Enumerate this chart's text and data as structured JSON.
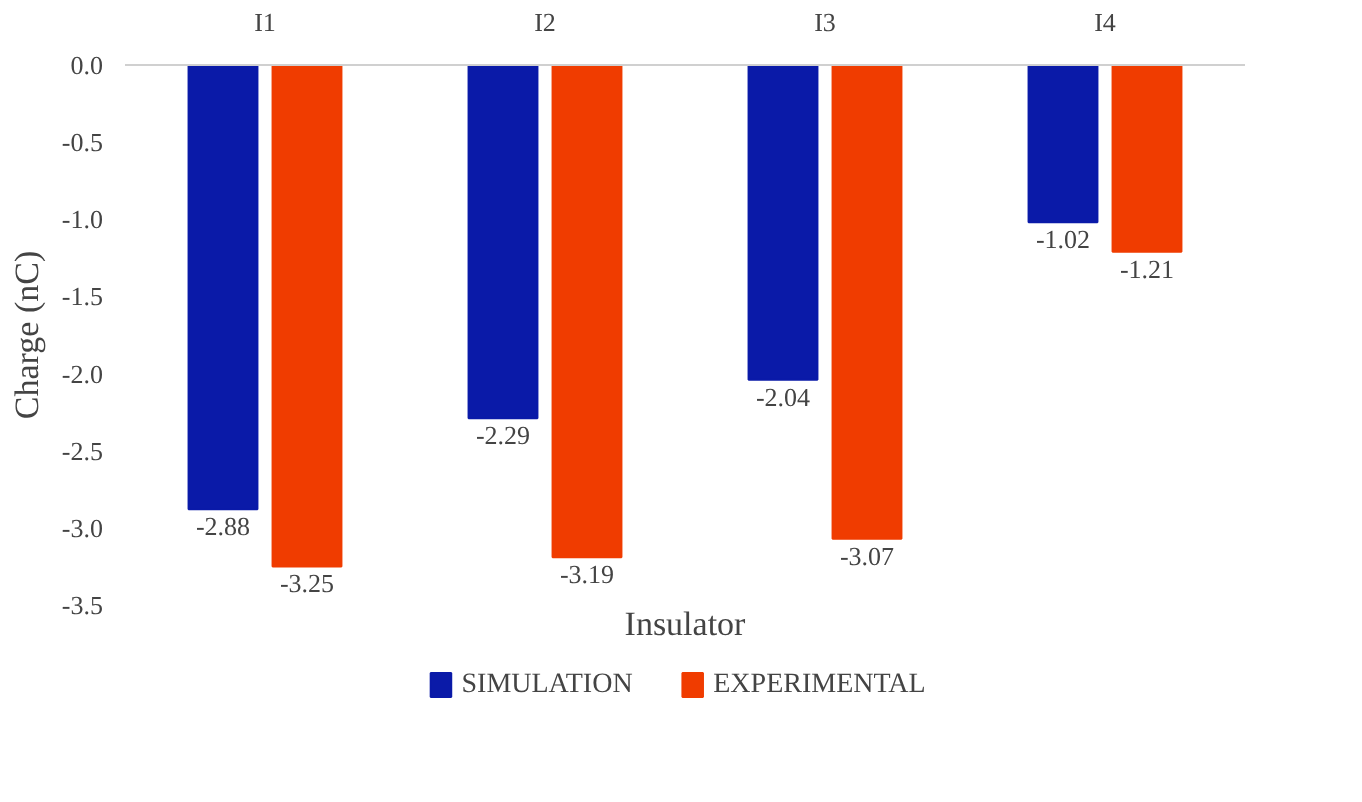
{
  "chart_data": {
    "type": "bar",
    "xlabel": "Insulator",
    "ylabel": "Charge (nC)",
    "categories": [
      "I1",
      "I2",
      "I3",
      "I4"
    ],
    "series": [
      {
        "name": "SIMULATION",
        "color": "#0a1aa8",
        "values": [
          -2.88,
          -2.29,
          -2.04,
          -1.02
        ]
      },
      {
        "name": "EXPERIMENTAL",
        "color": "#f03c00",
        "values": [
          -3.25,
          -3.19,
          -3.07,
          -1.21
        ]
      }
    ],
    "ylim": [
      -3.5,
      0
    ],
    "yticks": [
      {
        "value": 0,
        "label": "0.0"
      },
      {
        "value": -0.5,
        "label": "-0.5"
      },
      {
        "value": -1,
        "label": "-1.0"
      },
      {
        "value": -1.5,
        "label": "-1.5"
      },
      {
        "value": -2,
        "label": "-2.0"
      },
      {
        "value": -2.5,
        "label": "-2.5"
      },
      {
        "value": -3,
        "label": "-3.0"
      },
      {
        "value": -3.5,
        "label": "-3.5"
      }
    ],
    "data_labels": true,
    "grid": false,
    "legend": "bottom"
  }
}
